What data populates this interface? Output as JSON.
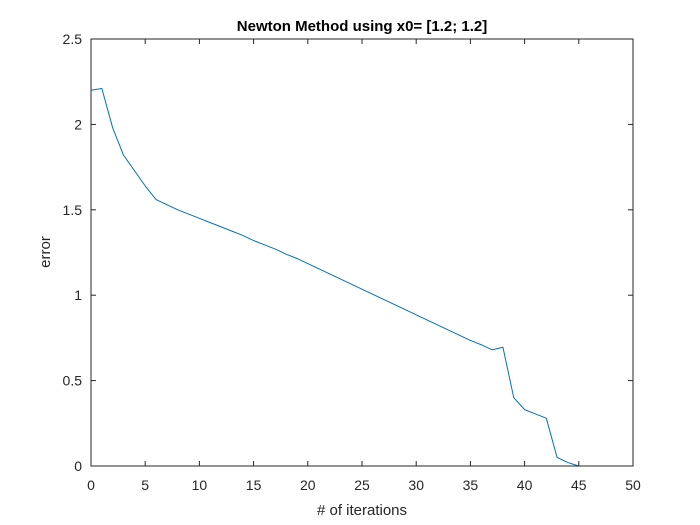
{
  "chart_data": {
    "type": "line",
    "title": "Newton Method using x0= [1.2; 1.2]",
    "xlabel": "# of iterations",
    "ylabel": "error",
    "xlim": [
      0,
      50
    ],
    "ylim": [
      0,
      2.5
    ],
    "xticks": [
      0,
      5,
      10,
      15,
      20,
      25,
      30,
      35,
      40,
      45,
      50
    ],
    "yticks": [
      0,
      0.5,
      1,
      1.5,
      2,
      2.5
    ],
    "xtick_labels": [
      "0",
      "5",
      "10",
      "15",
      "20",
      "25",
      "30",
      "35",
      "40",
      "45",
      "50"
    ],
    "ytick_labels": [
      "0",
      "0.5",
      "1",
      "1.5",
      "2",
      "2.5"
    ],
    "grid": false,
    "series": [
      {
        "color": "#0072BD",
        "x": [
          0,
          1,
          2,
          3,
          4,
          5,
          6,
          7,
          8,
          9,
          10,
          11,
          12,
          13,
          14,
          15,
          16,
          17,
          18,
          19,
          20,
          21,
          22,
          23,
          24,
          25,
          26,
          27,
          28,
          29,
          30,
          31,
          32,
          33,
          34,
          35,
          36,
          37,
          38,
          39,
          40,
          41,
          42,
          43,
          44,
          45,
          46,
          47,
          48
        ],
        "y": [
          2.2,
          2.21,
          1.98,
          1.82,
          1.73,
          1.64,
          1.56,
          1.53,
          1.5,
          1.475,
          1.45,
          1.425,
          1.4,
          1.375,
          1.35,
          1.32,
          1.295,
          1.27,
          1.24,
          1.215,
          1.185,
          1.155,
          1.125,
          1.095,
          1.065,
          1.035,
          1.005,
          0.975,
          0.945,
          0.915,
          0.885,
          0.855,
          0.825,
          0.795,
          0.765,
          0.735,
          0.71,
          0.68,
          0.695,
          0.4,
          0.33,
          0.305,
          0.28,
          0.05,
          0.02,
          0.0,
          0.0,
          0.0,
          0.0
        ]
      }
    ]
  }
}
